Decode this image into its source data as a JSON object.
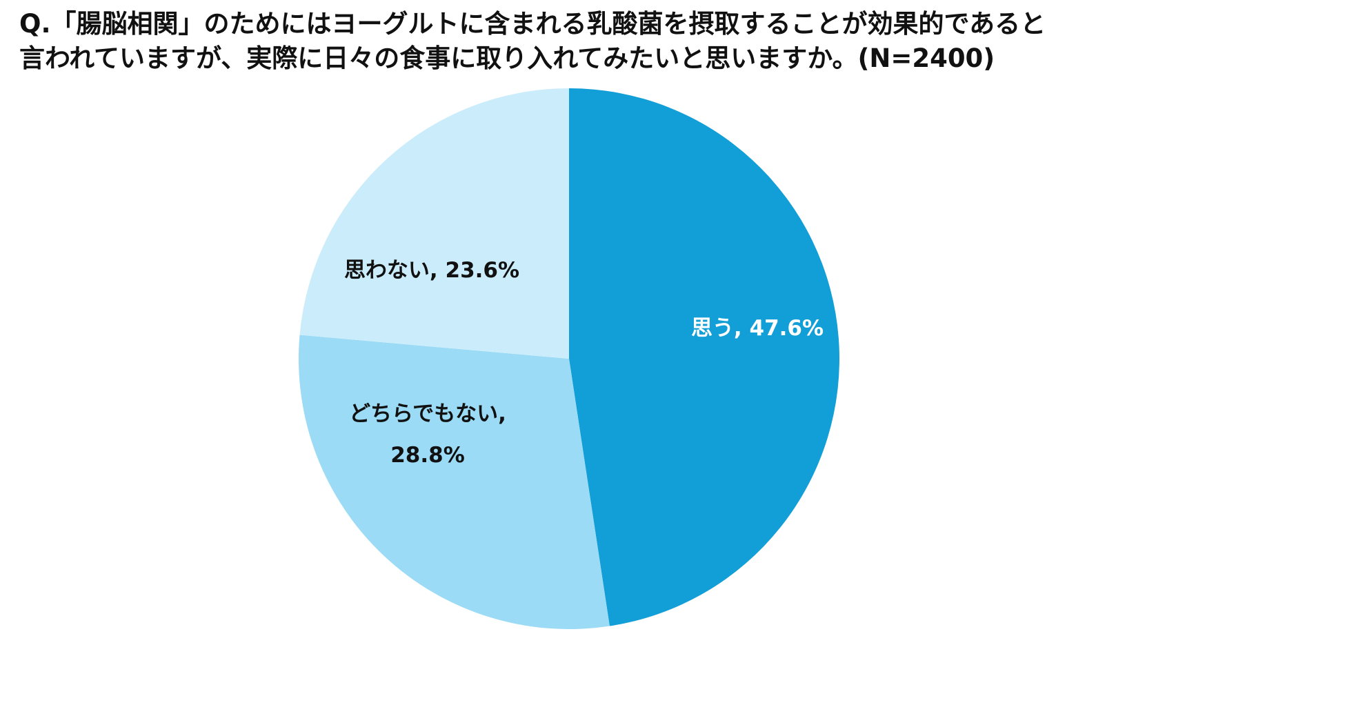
{
  "chart_data": {
    "type": "pie",
    "title_lines": [
      "Q.「腸脳相関」のためにはヨーグルトに含まれる乳酸菌を摂取することが効果的であると",
      "言われていますが、実際に日々の食事に取り入れてみたいと思いますか。(N=2400)"
    ],
    "slices": [
      {
        "label": "思う",
        "value": 47.6,
        "value_label": "47.6%",
        "label_lines": [
          "思う, 47.6%"
        ],
        "color": "#129ed6",
        "text_color": "#ffffff"
      },
      {
        "label": "どちらでもない",
        "value": 28.8,
        "value_label": "28.8%",
        "label_lines": [
          "どちらでもない,",
          "28.8%"
        ],
        "color": "#9bdbf6",
        "text_color": "#111111"
      },
      {
        "label": "思わない",
        "value": 23.6,
        "value_label": "23.6%",
        "label_lines": [
          "思わない, 23.6%"
        ],
        "color": "#cbedfb",
        "text_color": "#111111"
      }
    ],
    "start_angle": "12 o'clock",
    "direction": "clockwise",
    "legend": "none"
  }
}
